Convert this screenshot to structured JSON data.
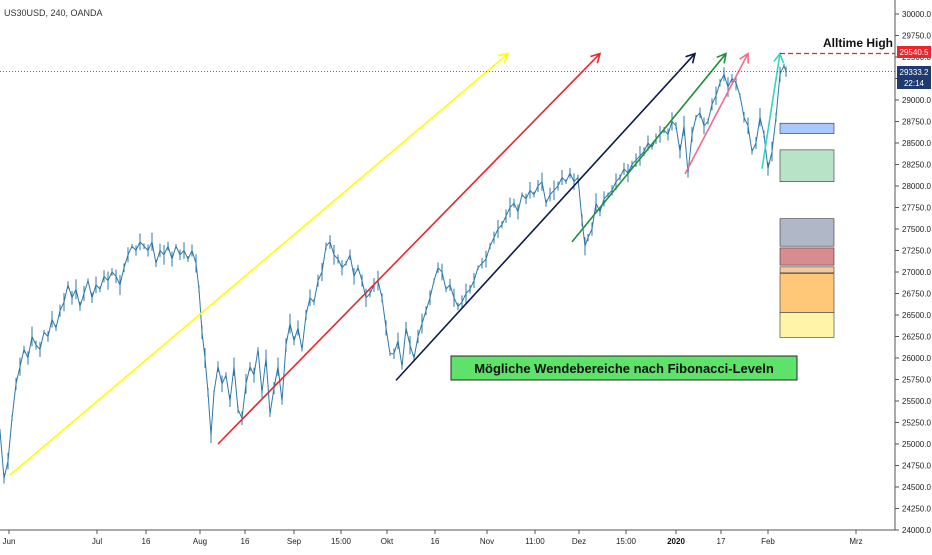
{
  "header": {
    "symbol_line": "US30USD, 240, OANDA"
  },
  "annotations": {
    "alltime_high_label": "Alltime High",
    "fibonacci_note": "Mögliche Wendebereiche nach Fibonacci-Leveln"
  },
  "price_markers": {
    "ath": {
      "text": "29540.5",
      "value": 29540.5,
      "color": "#e8262b"
    },
    "last": {
      "text": "29333.2",
      "value": 29333.2
    },
    "countdown": {
      "text": "22:14"
    }
  },
  "chart_data": {
    "type": "line",
    "title": "",
    "xlabel": "",
    "ylabel": "",
    "ylim": [
      24000,
      30000
    ],
    "y_ticks": [
      "24000.0",
      "24250.0",
      "24500.0",
      "24750.0",
      "25000.0",
      "25250.0",
      "25500.0",
      "25750.0",
      "26000.0",
      "26250.0",
      "26500.0",
      "26750.0",
      "27000.0",
      "27250.0",
      "27500.0",
      "27750.0",
      "28000.0",
      "28250.0",
      "28500.0",
      "28750.0",
      "29000.0",
      "29250.0",
      "29500.0",
      "29750.0",
      "30000.0"
    ],
    "x_ticks": [
      {
        "label": "Jun",
        "bold": false
      },
      {
        "label": "Jul",
        "bold": false
      },
      {
        "label": "16",
        "bold": false
      },
      {
        "label": "Aug",
        "bold": false
      },
      {
        "label": "16",
        "bold": false
      },
      {
        "label": "Sep",
        "bold": false
      },
      {
        "label": "15:00",
        "bold": false
      },
      {
        "label": "Okt",
        "bold": false
      },
      {
        "label": "16",
        "bold": false
      },
      {
        "label": "Nov",
        "bold": false
      },
      {
        "label": "11:00",
        "bold": false
      },
      {
        "label": "Dez",
        "bold": false
      },
      {
        "label": "15:00",
        "bold": false
      },
      {
        "label": "2020",
        "bold": true
      },
      {
        "label": "17",
        "bold": false
      },
      {
        "label": "Feb",
        "bold": false
      },
      {
        "label": "Mrz",
        "bold": false
      }
    ],
    "series": [
      {
        "values": [
          [
            0,
            25150
          ],
          [
            4,
            24600
          ],
          [
            8,
            24800
          ],
          [
            12,
            25300
          ],
          [
            16,
            25700
          ],
          [
            20,
            25900
          ],
          [
            24,
            26100
          ],
          [
            28,
            26000
          ],
          [
            32,
            26250
          ],
          [
            36,
            26150
          ],
          [
            40,
            26100
          ],
          [
            44,
            26300
          ],
          [
            48,
            26250
          ],
          [
            52,
            26450
          ],
          [
            56,
            26350
          ],
          [
            60,
            26550
          ],
          [
            64,
            26650
          ],
          [
            68,
            26850
          ],
          [
            72,
            26700
          ],
          [
            76,
            26800
          ],
          [
            80,
            26600
          ],
          [
            84,
            26750
          ],
          [
            88,
            26900
          ],
          [
            92,
            26700
          ],
          [
            96,
            26850
          ],
          [
            100,
            26800
          ],
          [
            104,
            26950
          ],
          [
            108,
            26900
          ],
          [
            112,
            27000
          ],
          [
            116,
            26950
          ],
          [
            120,
            26850
          ],
          [
            124,
            27050
          ],
          [
            128,
            27200
          ],
          [
            132,
            27300
          ],
          [
            136,
            27250
          ],
          [
            140,
            27350
          ],
          [
            144,
            27300
          ],
          [
            148,
            27250
          ],
          [
            152,
            27350
          ],
          [
            156,
            27100
          ],
          [
            160,
            27250
          ],
          [
            164,
            27200
          ],
          [
            168,
            27300
          ],
          [
            172,
            27150
          ],
          [
            176,
            27300
          ],
          [
            180,
            27200
          ],
          [
            184,
            27250
          ],
          [
            188,
            27150
          ],
          [
            192,
            27250
          ],
          [
            196,
            27100
          ],
          [
            199,
            26800
          ],
          [
            202,
            26300
          ],
          [
            205,
            26000
          ],
          [
            208,
            25600
          ],
          [
            211,
            25100
          ],
          [
            214,
            25600
          ],
          [
            218,
            25900
          ],
          [
            222,
            25700
          ],
          [
            226,
            25800
          ],
          [
            230,
            25500
          ],
          [
            234,
            25900
          ],
          [
            238,
            25400
          ],
          [
            242,
            25300
          ],
          [
            246,
            25700
          ],
          [
            250,
            25900
          ],
          [
            254,
            25800
          ],
          [
            258,
            26100
          ],
          [
            262,
            25600
          ],
          [
            266,
            26000
          ],
          [
            270,
            25350
          ],
          [
            274,
            25650
          ],
          [
            278,
            25900
          ],
          [
            282,
            25500
          ],
          [
            286,
            26150
          ],
          [
            290,
            26400
          ],
          [
            294,
            26200
          ],
          [
            298,
            26350
          ],
          [
            302,
            26100
          ],
          [
            306,
            26500
          ],
          [
            310,
            26700
          ],
          [
            314,
            26650
          ],
          [
            318,
            26900
          ],
          [
            322,
            27000
          ],
          [
            326,
            27300
          ],
          [
            330,
            27350
          ],
          [
            334,
            27200
          ],
          [
            338,
            27150
          ],
          [
            342,
            27050
          ],
          [
            346,
            27100
          ],
          [
            350,
            27200
          ],
          [
            354,
            26950
          ],
          [
            358,
            27050
          ],
          [
            362,
            26900
          ],
          [
            366,
            26700
          ],
          [
            370,
            26750
          ],
          [
            374,
            26850
          ],
          [
            378,
            26900
          ],
          [
            382,
            26700
          ],
          [
            386,
            26350
          ],
          [
            390,
            26050
          ],
          [
            394,
            26050
          ],
          [
            398,
            26200
          ],
          [
            402,
            25900
          ],
          [
            406,
            26350
          ],
          [
            410,
            26150
          ],
          [
            414,
            26000
          ],
          [
            418,
            26250
          ],
          [
            422,
            26400
          ],
          [
            426,
            26550
          ],
          [
            430,
            26700
          ],
          [
            434,
            26900
          ],
          [
            438,
            27050
          ],
          [
            442,
            27000
          ],
          [
            446,
            26800
          ],
          [
            450,
            26850
          ],
          [
            454,
            26700
          ],
          [
            458,
            26600
          ],
          [
            462,
            26650
          ],
          [
            466,
            26750
          ],
          [
            470,
            26800
          ],
          [
            474,
            26900
          ],
          [
            478,
            27050
          ],
          [
            482,
            27100
          ],
          [
            486,
            27150
          ],
          [
            490,
            27300
          ],
          [
            494,
            27400
          ],
          [
            498,
            27500
          ],
          [
            502,
            27550
          ],
          [
            506,
            27650
          ],
          [
            510,
            27750
          ],
          [
            514,
            27800
          ],
          [
            518,
            27700
          ],
          [
            522,
            27900
          ],
          [
            526,
            27850
          ],
          [
            530,
            27950
          ],
          [
            534,
            27900
          ],
          [
            538,
            28000
          ],
          [
            542,
            28050
          ],
          [
            546,
            27800
          ],
          [
            550,
            27900
          ],
          [
            554,
            27950
          ],
          [
            558,
            28000
          ],
          [
            562,
            28100
          ],
          [
            566,
            28050
          ],
          [
            570,
            28150
          ],
          [
            574,
            28050
          ],
          [
            578,
            28100
          ],
          [
            582,
            27600
          ],
          [
            585,
            27300
          ],
          [
            588,
            27400
          ],
          [
            592,
            27500
          ],
          [
            596,
            27800
          ],
          [
            600,
            27700
          ],
          [
            604,
            27850
          ],
          [
            608,
            27900
          ],
          [
            612,
            27950
          ],
          [
            616,
            28050
          ],
          [
            620,
            28100
          ],
          [
            624,
            28200
          ],
          [
            628,
            28150
          ],
          [
            632,
            28250
          ],
          [
            636,
            28300
          ],
          [
            640,
            28350
          ],
          [
            644,
            28400
          ],
          [
            648,
            28500
          ],
          [
            652,
            28450
          ],
          [
            656,
            28550
          ],
          [
            660,
            28600
          ],
          [
            664,
            28650
          ],
          [
            668,
            28600
          ],
          [
            672,
            28750
          ],
          [
            676,
            28700
          ],
          [
            680,
            28400
          ],
          [
            684,
            28700
          ],
          [
            688,
            28150
          ],
          [
            692,
            28600
          ],
          [
            696,
            28800
          ],
          [
            700,
            28850
          ],
          [
            704,
            28700
          ],
          [
            708,
            28750
          ],
          [
            712,
            28950
          ],
          [
            716,
            29050
          ],
          [
            720,
            29200
          ],
          [
            724,
            29300
          ],
          [
            728,
            29150
          ],
          [
            732,
            29250
          ],
          [
            736,
            29200
          ],
          [
            740,
            29050
          ],
          [
            744,
            28800
          ],
          [
            748,
            28700
          ],
          [
            752,
            28400
          ],
          [
            756,
            28500
          ],
          [
            760,
            28800
          ],
          [
            764,
            28600
          ],
          [
            768,
            28200
          ],
          [
            772,
            28400
          ],
          [
            776,
            28800
          ],
          [
            780,
            29300
          ],
          [
            784,
            29400
          ],
          [
            786,
            29330
          ]
        ]
      }
    ],
    "trend_lines": [
      {
        "color": "#ffff00",
        "x1": 10,
        "y1": 24640,
        "x2": 508,
        "y2": 29540
      },
      {
        "color": "#e8262b",
        "x1": 218,
        "y1": 25000,
        "x2": 600,
        "y2": 29540
      },
      {
        "color": "#0c1a4a",
        "x1": 396,
        "y1": 25740,
        "x2": 695,
        "y2": 29540
      },
      {
        "color": "#1f8f3a",
        "x1": 572,
        "y1": 27350,
        "x2": 726,
        "y2": 29540
      },
      {
        "color": "#f26b8a",
        "x1": 685,
        "y1": 28140,
        "x2": 748,
        "y2": 29540
      },
      {
        "color": "#33d6c0",
        "x1": 762,
        "y1": 28200,
        "x2": 780,
        "y2": 29540
      }
    ],
    "fib_zones": [
      {
        "color": "#a9c8ff",
        "border": "#333333",
        "top": 28730,
        "bottom": 28610
      },
      {
        "color": "#b9e3c7",
        "border": "#333333",
        "top": 28420,
        "bottom": 28050
      },
      {
        "color": "#b0b8c8",
        "border": "#333333",
        "top": 27620,
        "bottom": 27300
      },
      {
        "color": "#d98c90",
        "border": "#333333",
        "top": 27280,
        "bottom": 27080
      },
      {
        "color": "#f3c99a",
        "border": "#333333",
        "top": 27060,
        "bottom": 26990
      },
      {
        "color": "#ffc879",
        "border": "#333333",
        "top": 26980,
        "bottom": 26530
      },
      {
        "color": "#fff4a8",
        "border": "#333333",
        "top": 26530,
        "bottom": 26240
      }
    ]
  },
  "colors": {
    "price_line": "#2e78a8",
    "ath_line": "#e8262b",
    "last_line": "#1f3a6e",
    "fib_note_bg": "#5ee26a"
  }
}
